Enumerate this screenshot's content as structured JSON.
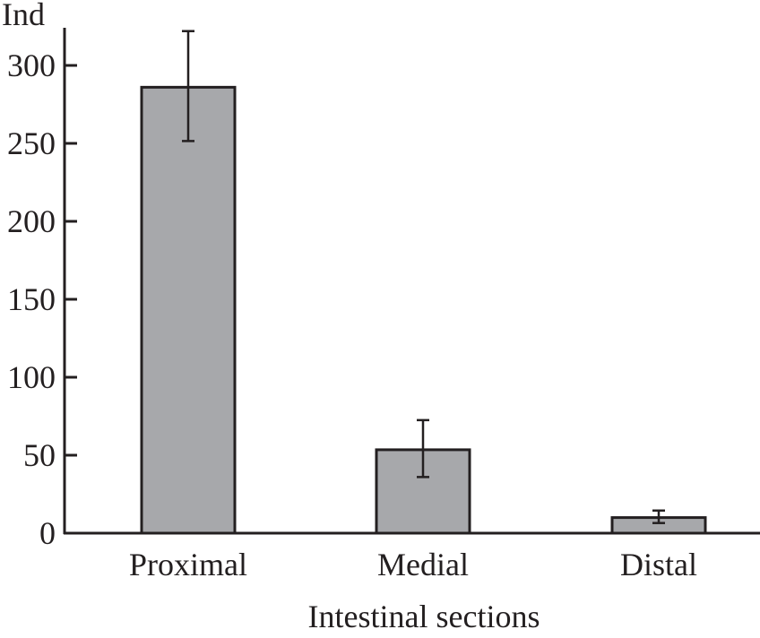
{
  "chart_data": {
    "type": "bar",
    "title": "",
    "xlabel": "Intestinal sections",
    "ylabel": "Ind",
    "categories": [
      "Proximal",
      "Medial",
      "Distal"
    ],
    "values": [
      286,
      53.5,
      10
    ],
    "error_low": [
      251.5,
      36,
      6.5
    ],
    "error_high": [
      322,
      72.5,
      14.5
    ],
    "ylim": [
      0,
      300
    ],
    "yticks": [
      0,
      50,
      100,
      150,
      200,
      250,
      300
    ],
    "grid": false,
    "colors": {
      "bar": "#a7a8ab",
      "stroke": "#231f20"
    }
  }
}
